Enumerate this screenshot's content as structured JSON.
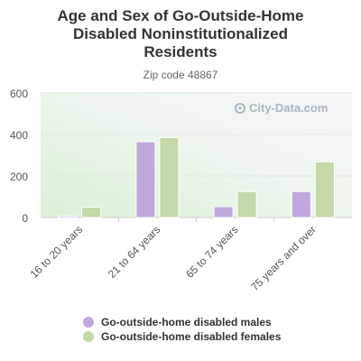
{
  "chart_data": {
    "type": "bar",
    "title": "Age and Sex of Go-Outside-Home Disabled Noninstitutionalized Residents",
    "title_lines": [
      "Age and Sex of Go-Outside-Home",
      "Disabled Noninstitutionalized",
      "Residents"
    ],
    "subtitle": "Zip code 48867",
    "categories": [
      "16 to 20 years",
      "21 to 64 years",
      "65 to 74 years",
      "75 years and over"
    ],
    "series": [
      {
        "name": "Go-outside-home disabled males",
        "color": "#c0a8dc",
        "values": [
          7,
          365,
          52,
          125
        ]
      },
      {
        "name": "Go-outside-home disabled females",
        "color": "#c4d8a8",
        "values": [
          50,
          385,
          125,
          268
        ]
      }
    ],
    "yticks": [
      0,
      200,
      400,
      600
    ],
    "ylim": [
      0,
      600
    ],
    "grid": true,
    "legend_position": "bottom",
    "watermark": "City-Data.com"
  }
}
